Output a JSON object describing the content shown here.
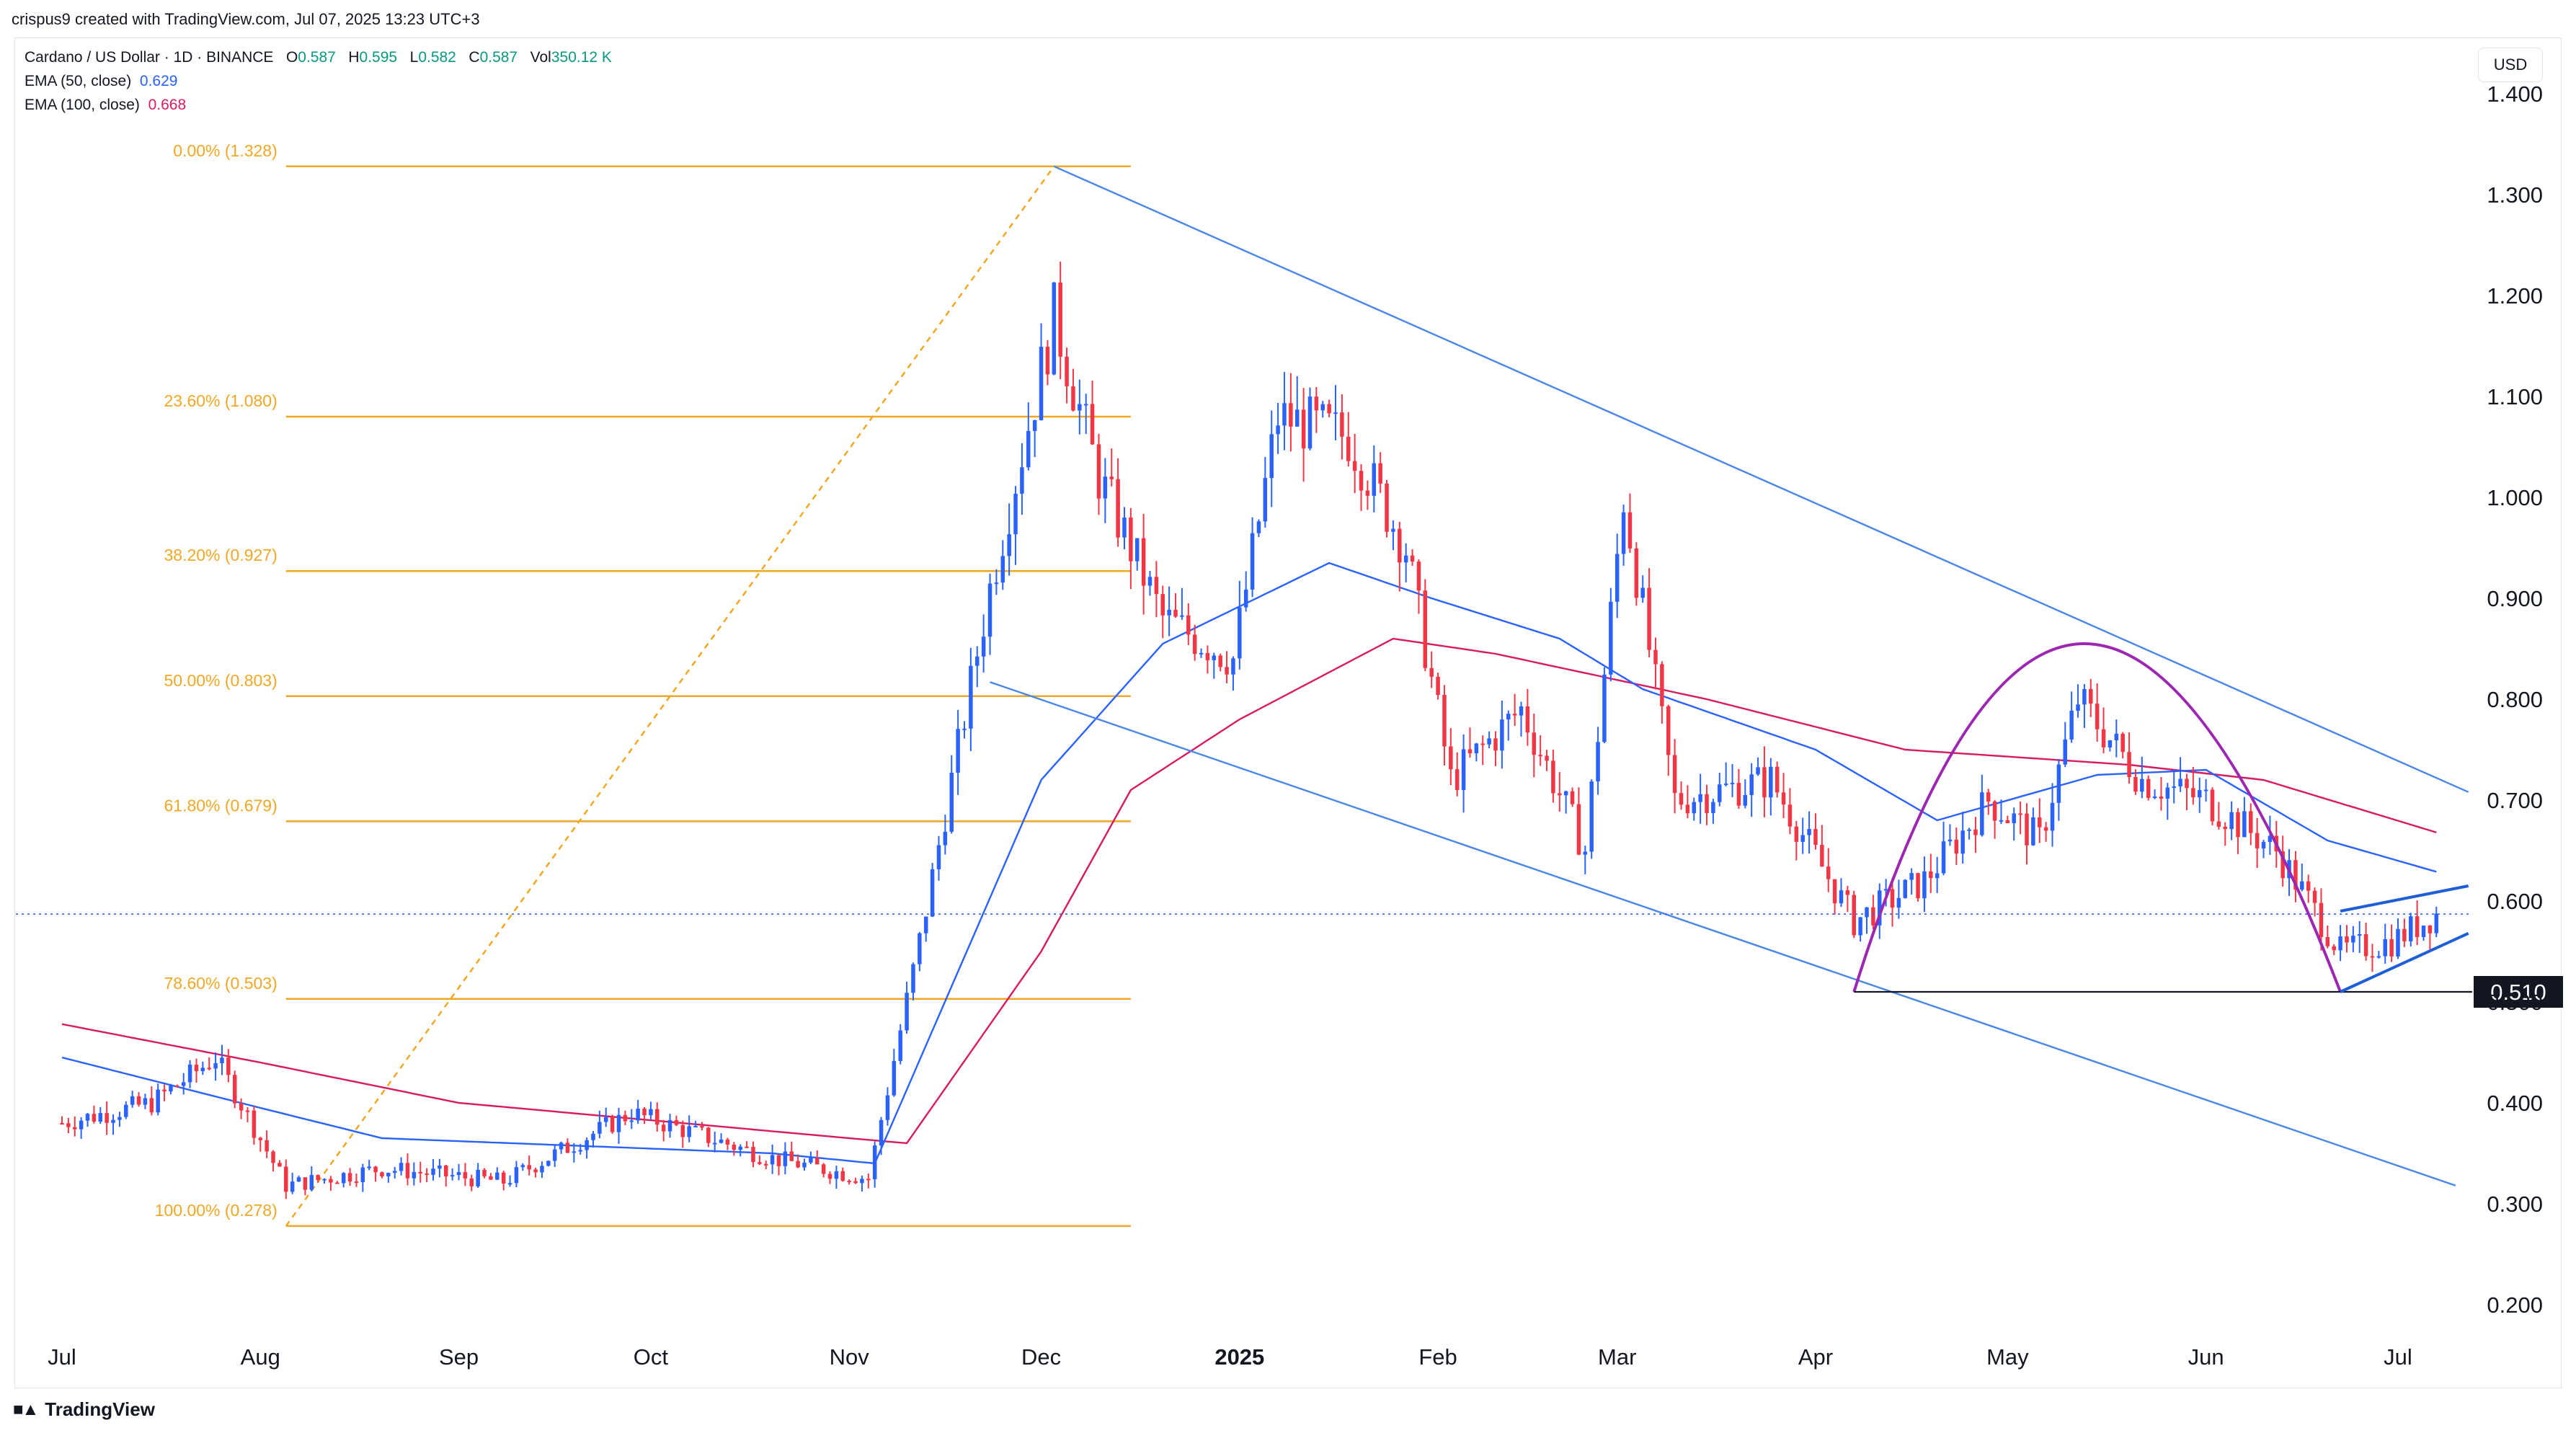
{
  "header": {
    "created_by": "crispus9 created with TradingView.com, Jul 07, 2025 13:23 UTC+3",
    "symbol": "Cardano / US Dollar · 1D · BINANCE",
    "o_label": "O",
    "o_value": "0.587",
    "h_label": "H",
    "h_value": "0.595",
    "l_label": "L",
    "l_value": "0.582",
    "c_label": "C",
    "c_value": "0.587",
    "vol_label": "Vol",
    "vol_value": "350.12 K",
    "ema50_label": "EMA (50, close)",
    "ema50_value": "0.629",
    "ema100_label": "EMA (100, close)",
    "ema100_value": "0.668",
    "currency": "USD"
  },
  "footer": {
    "brand": "TradingView",
    "logo": "tradingview-logo-icon"
  },
  "colors": {
    "up": "#2962ff",
    "down": "#f23645",
    "ema50": "#2962ff",
    "ema100": "#d81b60",
    "fib": "#f0a824",
    "channel": "#4a86e8",
    "arc": "#9c27b0",
    "support": "#131722",
    "wedge": "#1e5fd8",
    "price_line": "#2962ff",
    "value_green": "#089981"
  },
  "chart_data": {
    "type": "candlestick",
    "title": "Cardano / US Dollar · 1D · BINANCE",
    "ylim": [
      0.16,
      1.44
    ],
    "y_ticks": [
      "1.400",
      "1.300",
      "1.200",
      "1.100",
      "1.000",
      "0.900",
      "0.800",
      "0.700",
      "0.600",
      "0.500",
      "0.400",
      "0.300",
      "0.200"
    ],
    "x_ticks": [
      "Jul",
      "Aug",
      "Sep",
      "Oct",
      "Nov",
      "Dec",
      "2025",
      "Feb",
      "Mar",
      "Apr",
      "May",
      "Jun",
      "Jul"
    ],
    "x_tick_dates": [
      "2024-07-01",
      "2024-08-01",
      "2024-09-01",
      "2024-10-01",
      "2024-11-01",
      "2024-12-01",
      "2025-01-01",
      "2025-02-01",
      "2025-03-01",
      "2025-04-01",
      "2025-05-01",
      "2025-06-01",
      "2025-07-01"
    ],
    "last_price": 0.587,
    "fib_levels": [
      {
        "label": "0.00% (1.328)",
        "value": 1.328
      },
      {
        "label": "23.60% (1.080)",
        "value": 1.08
      },
      {
        "label": "38.20% (0.927)",
        "value": 0.927
      },
      {
        "label": "50.00% (0.803)",
        "value": 0.803
      },
      {
        "label": "61.80% (0.679)",
        "value": 0.679
      },
      {
        "label": "78.60% (0.503)",
        "value": 0.503
      },
      {
        "label": "100.00% (0.278)",
        "value": 0.278
      }
    ],
    "fib_range": {
      "from_date": "2024-08-05",
      "to_date": "2024-12-03"
    },
    "support": {
      "label": "0.510",
      "value": 0.51,
      "from_date": "2025-04-07"
    },
    "channel_upper": [
      {
        "date": "2024-12-03",
        "value": 1.328
      },
      {
        "date": "2025-07-12",
        "value": 0.708
      }
    ],
    "channel_lower": [
      {
        "date": "2024-11-23",
        "value": 0.817
      },
      {
        "date": "2025-07-10",
        "value": 0.318
      }
    ],
    "arc": {
      "start_date": "2025-04-07",
      "start_value": 0.51,
      "peak_date": "2025-05-13",
      "peak_value": 0.855,
      "end_date": "2025-06-22",
      "end_value": 0.51
    },
    "wedge_upper": [
      {
        "date": "2025-06-22",
        "value": 0.59
      },
      {
        "date": "2025-07-12",
        "value": 0.615
      }
    ],
    "wedge_lower": [
      {
        "date": "2025-06-22",
        "value": 0.51
      },
      {
        "date": "2025-07-12",
        "value": 0.568
      }
    ],
    "price_anchors": [
      [
        "2024-07-01",
        0.38
      ],
      [
        "2024-07-15",
        0.4
      ],
      [
        "2024-07-25",
        0.445
      ],
      [
        "2024-08-05",
        0.318
      ],
      [
        "2024-08-20",
        0.335
      ],
      [
        "2024-09-08",
        0.322
      ],
      [
        "2024-09-28",
        0.39
      ],
      [
        "2024-10-20",
        0.345
      ],
      [
        "2024-11-04",
        0.325
      ],
      [
        "2024-11-12",
        0.56
      ],
      [
        "2024-11-23",
        0.91
      ],
      [
        "2024-12-03",
        1.18
      ],
      [
        "2024-12-10",
        1.02
      ],
      [
        "2024-12-20",
        0.88
      ],
      [
        "2024-12-31",
        0.84
      ],
      [
        "2025-01-07",
        1.08
      ],
      [
        "2025-01-18",
        1.06
      ],
      [
        "2025-01-27",
        0.95
      ],
      [
        "2025-02-03",
        0.72
      ],
      [
        "2025-02-14",
        0.79
      ],
      [
        "2025-02-24",
        0.65
      ],
      [
        "2025-03-02",
        1.0
      ],
      [
        "2025-03-10",
        0.7
      ],
      [
        "2025-03-25",
        0.72
      ],
      [
        "2025-04-07",
        0.58
      ],
      [
        "2025-04-18",
        0.62
      ],
      [
        "2025-04-28",
        0.7
      ],
      [
        "2025-05-06",
        0.66
      ],
      [
        "2025-05-12",
        0.8
      ],
      [
        "2025-05-22",
        0.72
      ],
      [
        "2025-06-01",
        0.7
      ],
      [
        "2025-06-12",
        0.65
      ],
      [
        "2025-06-22",
        0.55
      ],
      [
        "2025-06-30",
        0.56
      ],
      [
        "2025-07-07",
        0.587
      ]
    ],
    "ema50_anchors": [
      [
        "2024-07-01",
        0.445
      ],
      [
        "2024-08-01",
        0.395
      ],
      [
        "2024-08-20",
        0.365
      ],
      [
        "2024-10-20",
        0.35
      ],
      [
        "2024-11-05",
        0.34
      ],
      [
        "2024-12-01",
        0.72
      ],
      [
        "2024-12-20",
        0.855
      ],
      [
        "2025-01-15",
        0.935
      ],
      [
        "2025-01-31",
        0.9
      ],
      [
        "2025-02-20",
        0.86
      ],
      [
        "2025-03-05",
        0.81
      ],
      [
        "2025-04-01",
        0.75
      ],
      [
        "2025-04-20",
        0.68
      ],
      [
        "2025-05-15",
        0.725
      ],
      [
        "2025-06-01",
        0.73
      ],
      [
        "2025-06-20",
        0.66
      ],
      [
        "2025-07-07",
        0.629
      ]
    ],
    "ema100_anchors": [
      [
        "2024-07-01",
        0.478
      ],
      [
        "2024-08-01",
        0.44
      ],
      [
        "2024-09-01",
        0.4
      ],
      [
        "2024-11-01",
        0.365
      ],
      [
        "2024-11-10",
        0.36
      ],
      [
        "2024-12-01",
        0.55
      ],
      [
        "2024-12-15",
        0.71
      ],
      [
        "2025-01-01",
        0.78
      ],
      [
        "2025-01-25",
        0.86
      ],
      [
        "2025-02-10",
        0.845
      ],
      [
        "2025-03-15",
        0.8
      ],
      [
        "2025-04-15",
        0.75
      ],
      [
        "2025-05-20",
        0.735
      ],
      [
        "2025-06-10",
        0.72
      ],
      [
        "2025-07-07",
        0.668
      ]
    ]
  }
}
